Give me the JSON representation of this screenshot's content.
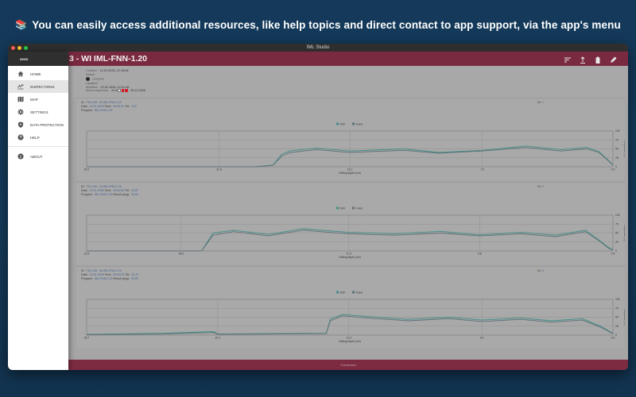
{
  "caption": {
    "emoji": "📚",
    "text": "You can easily access additional resources, like help topics and direct contact to app support, via the app's menu"
  },
  "window": {
    "title": "IML Studio"
  },
  "drawer": {
    "header": "IMMS",
    "items": [
      {
        "label": "HOME",
        "icon": "home-icon",
        "active": false
      },
      {
        "label": "INSPECTIONS",
        "icon": "inspections-icon",
        "active": true
      },
      {
        "label": "MAP",
        "icon": "map-icon",
        "active": false
      },
      {
        "label": "SETTINGS",
        "icon": "gear-icon",
        "active": false
      },
      {
        "label": "DATA PROTECTION",
        "icon": "shield-icon",
        "active": false
      },
      {
        "label": "HELP",
        "icon": "help-icon",
        "active": false
      }
    ],
    "about": {
      "label": "ABOUT",
      "icon": "info-icon"
    }
  },
  "appbar": {
    "title": "3 - WI IML-FNN-1.20",
    "actions": [
      "sort-icon",
      "share-icon",
      "delete-icon",
      "edit-icon"
    ]
  },
  "meta": {
    "created_label": "Created:",
    "created": "12.01.2026, 12:18:48",
    "status_label": "Status:",
    "status": "complete",
    "updated_label": "Updated:",
    "modified_label": "Modified:",
    "modified": "12.01.2026, 12:21:48",
    "assessment_label": "Wood inspection:",
    "assessment": "24.6",
    "assessment_date": "25.12.2025"
  },
  "panels": [
    {
      "id_label": "ID:",
      "id": "TW-1.60 - W-IML-FNN-1.20",
      "date_label": "Date:",
      "date": "12.01.2026",
      "time_label": "Time:",
      "time": "09:39:41",
      "tilt_label": "Tilt:",
      "tilt": "1.87",
      "program_label": "Program:",
      "program": "IML-FNN-1.20",
      "result_label": "",
      "result": "",
      "nr_label": "Nr:",
      "nr": "1"
    },
    {
      "id_label": "ID:",
      "id": "TW-1.60 - W-IML-FNN-1.20",
      "date_label": "Date:",
      "date": "12.01.2026",
      "time_label": "Time:",
      "time": "09:40:09",
      "tilt_label": "Tilt:",
      "tilt": "20.87",
      "program_label": "Program:",
      "program": "IML-FNN-1.20",
      "result_label": "Result (avg):",
      "result": "39.82",
      "nr_label": "Nr:",
      "nr": "2"
    },
    {
      "id_label": "ID:",
      "id": "TW-1.60 - W-IML-FNN-1.20",
      "date_label": "Date:",
      "date": "12.01.2026",
      "time_label": "Time:",
      "time": "09:40:33",
      "tilt_label": "Tilt:",
      "tilt": "10.73",
      "program_label": "Program:",
      "program": "IML-FNN-1.20",
      "result_label": "Result (avg):",
      "result": "39.82",
      "nr_label": "Nr:",
      "nr": "3"
    }
  ],
  "bottom_bar": {
    "label": "Connected"
  },
  "colors": {
    "bar": "#7a2a40",
    "drill": "#3f8f86",
    "feed": "#5f6f78",
    "drawer_active": "#e4e4e4"
  },
  "chart_data": [
    {
      "type": "line",
      "title": "",
      "legend": {
        "entries": [
          "Drill",
          "Feed"
        ],
        "placement": "top-center"
      },
      "xlabel": "Drilling depth (cm)",
      "ylabel": "Amplitude (%)",
      "x_ticks": [
        "30.2",
        "22.6",
        "15.1",
        "7.5",
        "0.0"
      ],
      "y_ticks": [
        "100",
        "75",
        "50",
        "25",
        "0"
      ],
      "xlim": [
        30.2,
        0.0
      ],
      "ylim": [
        0,
        100
      ],
      "grid": true,
      "series": [
        {
          "name": "Drill",
          "x": [
            30.2,
            22.6,
            20.5,
            19.5,
            19.0,
            18.5,
            17.0,
            15.1,
            12.0,
            10.0,
            7.5,
            5.0,
            3.0,
            1.5,
            0.8,
            0.3,
            0.0
          ],
          "y": [
            0,
            0,
            0,
            5,
            35,
            45,
            52,
            44,
            50,
            40,
            46,
            58,
            48,
            54,
            42,
            20,
            5
          ]
        },
        {
          "name": "Feed",
          "x": [
            30.2,
            22.6,
            20.5,
            19.5,
            19.0,
            18.5,
            17.0,
            15.1,
            12.0,
            10.0,
            7.5,
            5.0,
            3.0,
            1.5,
            0.8,
            0.3,
            0.0
          ],
          "y": [
            0,
            0,
            0,
            4,
            30,
            40,
            48,
            40,
            46,
            38,
            44,
            54,
            44,
            50,
            40,
            18,
            4
          ]
        }
      ]
    },
    {
      "type": "line",
      "title": "",
      "legend": {
        "entries": [
          "Drill",
          "Feed"
        ],
        "placement": "top-center"
      },
      "xlabel": "Drilling depth (cm)",
      "ylabel": "Amplitude (%)",
      "x_ticks": [
        "22.9",
        "18.8",
        "11.5",
        "5.8",
        "0.0"
      ],
      "y_ticks": [
        "100",
        "75",
        "50",
        "25",
        "0"
      ],
      "xlim": [
        22.9,
        0.0
      ],
      "ylim": [
        0,
        100
      ],
      "grid": true,
      "series": [
        {
          "name": "Drill",
          "x": [
            22.9,
            18.8,
            17.9,
            17.4,
            16.5,
            15.0,
            13.5,
            11.5,
            9.5,
            7.5,
            5.8,
            4.0,
            2.5,
            1.2,
            0.6,
            0.2,
            0.0
          ],
          "y": [
            0,
            0,
            0,
            50,
            58,
            46,
            62,
            52,
            48,
            55,
            45,
            52,
            44,
            58,
            30,
            10,
            3
          ]
        },
        {
          "name": "Feed",
          "x": [
            22.9,
            18.8,
            17.9,
            17.4,
            16.5,
            15.0,
            13.5,
            11.5,
            9.5,
            7.5,
            5.8,
            4.0,
            2.5,
            1.2,
            0.6,
            0.2,
            0.0
          ],
          "y": [
            0,
            0,
            0,
            44,
            54,
            42,
            58,
            48,
            44,
            50,
            42,
            48,
            40,
            54,
            28,
            8,
            2
          ]
        }
      ]
    },
    {
      "type": "line",
      "title": "",
      "legend": {
        "entries": [
          "Drill",
          "Feed"
        ],
        "placement": "top-center"
      },
      "xlabel": "Drilling depth (cm)",
      "ylabel": "Amplitude (%)",
      "x_ticks": [
        "25.7",
        "19.3",
        "12.9",
        "6.4",
        "0.0"
      ],
      "y_ticks": [
        "100",
        "75",
        "50",
        "25",
        "0"
      ],
      "xlim": [
        25.7,
        0.0
      ],
      "ylim": [
        0,
        100
      ],
      "grid": true,
      "series": [
        {
          "name": "Drill",
          "x": [
            25.7,
            22.0,
            19.5,
            19.3,
            17.0,
            14.0,
            13.8,
            13.2,
            12.0,
            10.0,
            8.0,
            6.4,
            4.5,
            3.0,
            1.5,
            0.6,
            0.0
          ],
          "y": [
            2,
            5,
            10,
            3,
            4,
            5,
            45,
            58,
            52,
            44,
            50,
            42,
            48,
            40,
            46,
            25,
            5
          ]
        },
        {
          "name": "Feed",
          "x": [
            25.7,
            22.0,
            19.5,
            19.3,
            17.0,
            14.0,
            13.8,
            13.2,
            12.0,
            10.0,
            8.0,
            6.4,
            4.5,
            3.0,
            1.5,
            0.6,
            0.0
          ],
          "y": [
            1,
            3,
            7,
            2,
            3,
            4,
            40,
            54,
            48,
            40,
            46,
            38,
            44,
            36,
            42,
            22,
            4
          ]
        }
      ]
    }
  ]
}
